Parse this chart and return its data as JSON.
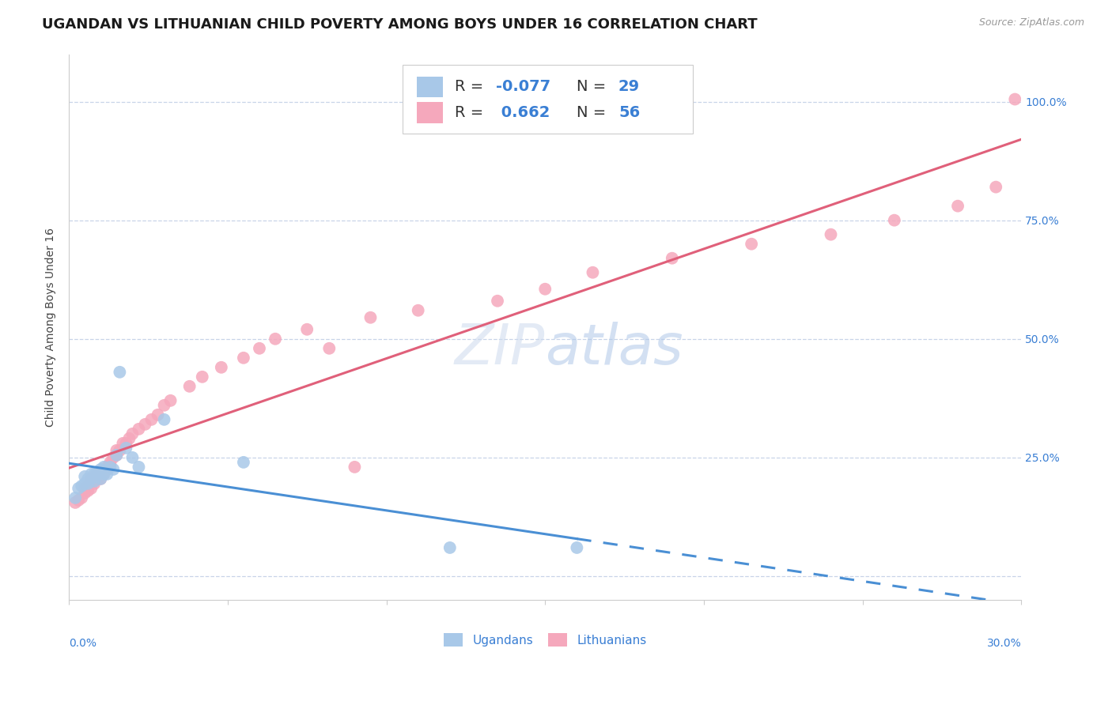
{
  "title": "UGANDAN VS LITHUANIAN CHILD POVERTY AMONG BOYS UNDER 16 CORRELATION CHART",
  "source": "Source: ZipAtlas.com",
  "ylabel": "Child Poverty Among Boys Under 16",
  "xlim": [
    0.0,
    0.3
  ],
  "ylim": [
    -0.05,
    1.1
  ],
  "yticks": [
    0.0,
    0.25,
    0.5,
    0.75,
    1.0
  ],
  "ytick_labels": [
    "",
    "25.0%",
    "50.0%",
    "75.0%",
    "100.0%"
  ],
  "ugandan_R": -0.077,
  "ugandan_N": 29,
  "lithuanian_R": 0.662,
  "lithuanian_N": 56,
  "ugandan_color": "#a8c8e8",
  "lithuanian_color": "#f5a8bc",
  "ugandan_line_color": "#4a8fd4",
  "lithuanian_line_color": "#e0607a",
  "watermark": "ZIPatlas",
  "ugandan_points_x": [
    0.002,
    0.003,
    0.004,
    0.005,
    0.005,
    0.006,
    0.006,
    0.007,
    0.007,
    0.008,
    0.008,
    0.009,
    0.009,
    0.01,
    0.01,
    0.011,
    0.011,
    0.012,
    0.013,
    0.014,
    0.015,
    0.016,
    0.018,
    0.02,
    0.022,
    0.03,
    0.055,
    0.12,
    0.16
  ],
  "ugandan_points_y": [
    0.165,
    0.185,
    0.19,
    0.195,
    0.21,
    0.195,
    0.205,
    0.205,
    0.215,
    0.2,
    0.215,
    0.215,
    0.22,
    0.205,
    0.225,
    0.215,
    0.23,
    0.215,
    0.23,
    0.225,
    0.255,
    0.43,
    0.27,
    0.25,
    0.23,
    0.33,
    0.24,
    0.06,
    0.06
  ],
  "lithuanian_points_x": [
    0.002,
    0.003,
    0.004,
    0.005,
    0.005,
    0.006,
    0.006,
    0.007,
    0.007,
    0.008,
    0.008,
    0.009,
    0.009,
    0.01,
    0.01,
    0.011,
    0.011,
    0.012,
    0.012,
    0.013,
    0.013,
    0.014,
    0.015,
    0.015,
    0.016,
    0.017,
    0.018,
    0.019,
    0.02,
    0.022,
    0.024,
    0.026,
    0.028,
    0.03,
    0.032,
    0.038,
    0.042,
    0.048,
    0.055,
    0.06,
    0.065,
    0.075,
    0.082,
    0.09,
    0.095,
    0.11,
    0.135,
    0.15,
    0.165,
    0.19,
    0.215,
    0.24,
    0.26,
    0.28,
    0.292,
    0.298
  ],
  "lithuanian_points_y": [
    0.155,
    0.16,
    0.165,
    0.185,
    0.175,
    0.18,
    0.19,
    0.185,
    0.205,
    0.195,
    0.21,
    0.205,
    0.215,
    0.215,
    0.205,
    0.22,
    0.215,
    0.225,
    0.23,
    0.24,
    0.235,
    0.25,
    0.265,
    0.255,
    0.265,
    0.28,
    0.28,
    0.29,
    0.3,
    0.31,
    0.32,
    0.33,
    0.34,
    0.36,
    0.37,
    0.4,
    0.42,
    0.44,
    0.46,
    0.48,
    0.5,
    0.52,
    0.48,
    0.23,
    0.545,
    0.56,
    0.58,
    0.605,
    0.64,
    0.67,
    0.7,
    0.72,
    0.75,
    0.78,
    0.82,
    1.005
  ],
  "background_color": "#ffffff",
  "grid_color": "#c8d4e8",
  "title_fontsize": 13,
  "axis_label_fontsize": 10,
  "tick_fontsize": 10,
  "legend_fontsize": 13
}
